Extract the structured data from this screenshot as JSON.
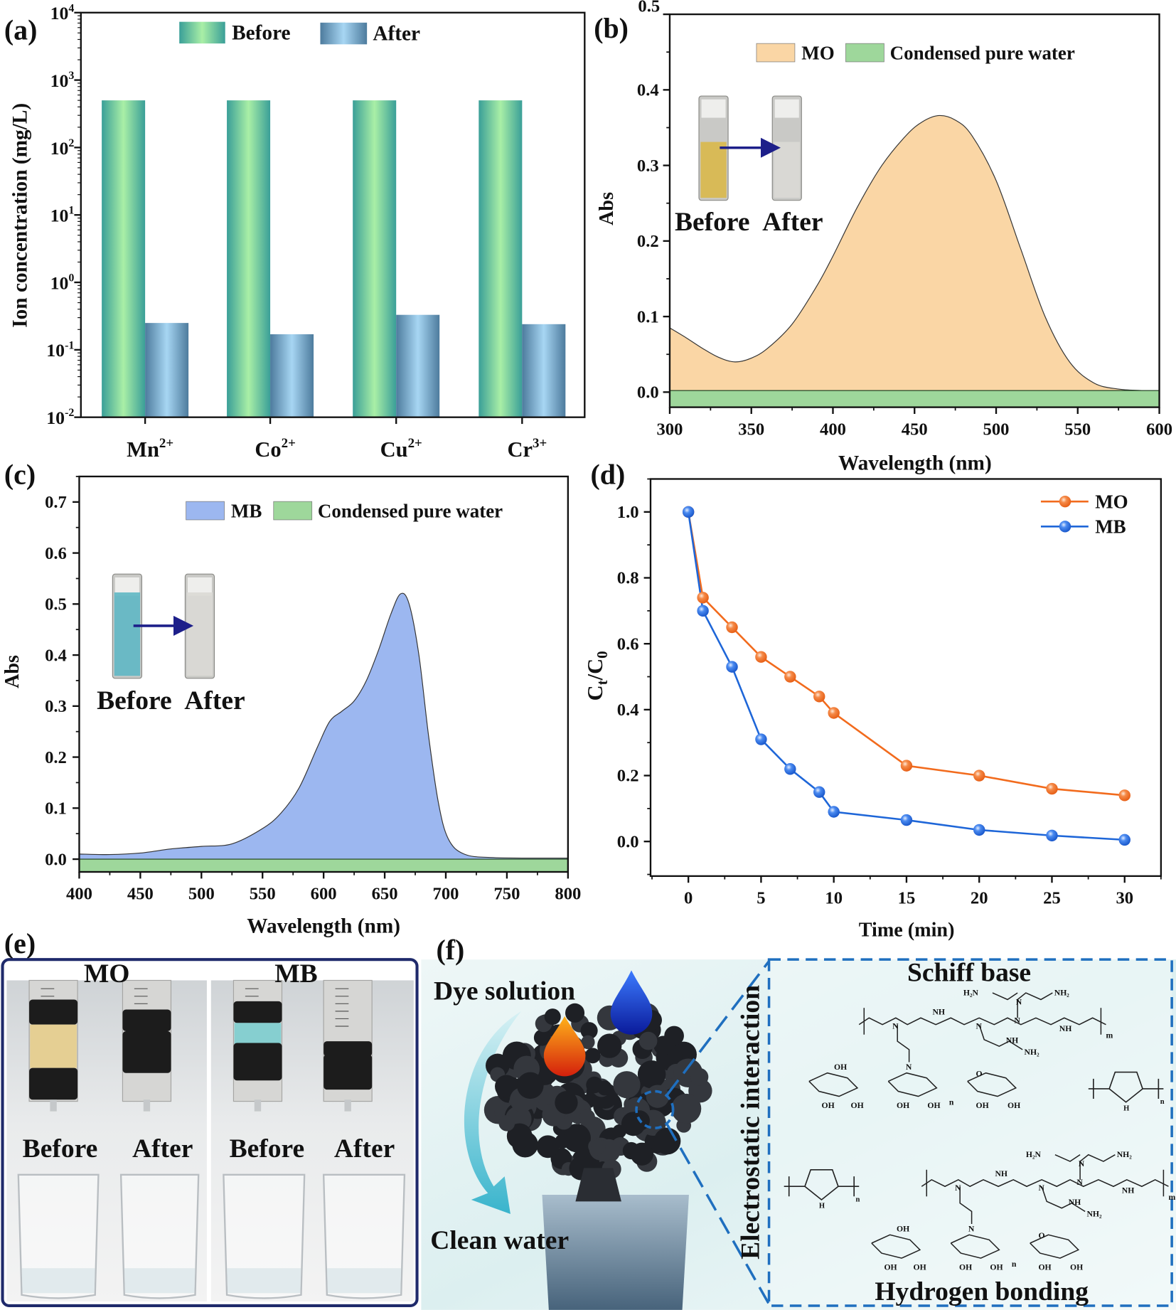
{
  "panel_labels": {
    "a": "(a)",
    "b": "(b)",
    "c": "(c)",
    "d": "(d)",
    "e": "(e)",
    "f": "(f)"
  },
  "chart_data": [
    {
      "id": "a",
      "type": "bar",
      "ylabel": "Ion concentration (mg/L)",
      "xlabel": "",
      "yscale": "log",
      "ylim": [
        0.01,
        10000
      ],
      "yticks": [
        {
          "base": "10",
          "exp": "-2"
        },
        {
          "base": "10",
          "exp": "-1"
        },
        {
          "base": "10",
          "exp": "0"
        },
        {
          "base": "10",
          "exp": "1"
        },
        {
          "base": "10",
          "exp": "2"
        },
        {
          "base": "10",
          "exp": "3"
        },
        {
          "base": "10",
          "exp": "4"
        }
      ],
      "categories": [
        {
          "ion": "Mn",
          "charge": "2+"
        },
        {
          "ion": "Co",
          "charge": "2+"
        },
        {
          "ion": "Cu",
          "charge": "2+"
        },
        {
          "ion": "Cr",
          "charge": "3+"
        }
      ],
      "series": [
        {
          "name": "Before",
          "values": [
            500,
            500,
            500,
            500
          ],
          "colors": [
            "#3a9f98",
            "#a9efa6"
          ]
        },
        {
          "name": "After",
          "values": [
            0.25,
            0.17,
            0.33,
            0.24
          ],
          "colors": [
            "#4d7b9d",
            "#a7d6f3"
          ]
        }
      ],
      "legend": "top-center",
      "grid": false
    },
    {
      "id": "b",
      "type": "area",
      "xlabel": "Wavelength (nm)",
      "ylabel": "Abs",
      "xlim": [
        300,
        600
      ],
      "ylim": [
        -0.02,
        0.5
      ],
      "xticks": [
        "300",
        "350",
        "400",
        "450",
        "500",
        "550",
        "600"
      ],
      "yticks": [
        "0.0",
        "0.1",
        "0.2",
        "0.3",
        "0.4",
        "0.5"
      ],
      "series": [
        {
          "name": "MO",
          "color": "#fad6a5",
          "x": [
            300,
            310,
            320,
            330,
            340,
            350,
            360,
            375,
            390,
            400,
            415,
            430,
            445,
            455,
            465,
            475,
            485,
            500,
            515,
            530,
            545,
            560,
            575,
            590,
            600
          ],
          "y": [
            0.085,
            0.072,
            0.058,
            0.046,
            0.04,
            0.045,
            0.058,
            0.09,
            0.14,
            0.18,
            0.245,
            0.3,
            0.34,
            0.358,
            0.366,
            0.36,
            0.34,
            0.28,
            0.19,
            0.1,
            0.04,
            0.012,
            0.004,
            0.002,
            0.0
          ]
        },
        {
          "name": "Condensed pure water",
          "color": "#9ed79b",
          "x": [
            300,
            600
          ],
          "y": [
            0.002,
            0.002
          ]
        }
      ],
      "legend": "top-right",
      "inset": {
        "before": "Before",
        "after": "After",
        "before_color": "#d9b84a"
      }
    },
    {
      "id": "c",
      "type": "area",
      "xlabel": "Wavelength (nm)",
      "ylabel": "Abs",
      "xlim": [
        400,
        800
      ],
      "ylim": [
        -0.025,
        0.75
      ],
      "xticks": [
        "400",
        "450",
        "500",
        "550",
        "600",
        "650",
        "700",
        "750",
        "800"
      ],
      "yticks": [
        "0.0",
        "0.1",
        "0.2",
        "0.3",
        "0.4",
        "0.5",
        "0.6",
        "0.7"
      ],
      "series": [
        {
          "name": "MB",
          "color": "#9cb7f0",
          "x": [
            400,
            425,
            450,
            475,
            500,
            525,
            550,
            565,
            580,
            595,
            605,
            615,
            625,
            635,
            645,
            655,
            663,
            670,
            678,
            686,
            694,
            702,
            715,
            740,
            800
          ],
          "y": [
            0.01,
            0.009,
            0.012,
            0.02,
            0.025,
            0.03,
            0.06,
            0.09,
            0.14,
            0.22,
            0.27,
            0.29,
            0.31,
            0.35,
            0.41,
            0.48,
            0.52,
            0.5,
            0.4,
            0.24,
            0.11,
            0.04,
            0.01,
            0.003,
            0.002
          ]
        },
        {
          "name": "Condensed pure water",
          "color": "#9ed79b",
          "x": [
            400,
            800
          ],
          "y": [
            0.0,
            0.0
          ]
        }
      ],
      "legend": "top-right",
      "inset": {
        "before": "Before",
        "after": "After",
        "before_color": "#5fb7c4"
      }
    },
    {
      "id": "d",
      "type": "line",
      "xlabel": "Time (min)",
      "ylabel_main": "C",
      "ylabel_sub1": "t",
      "ylabel_mid": "/C",
      "ylabel_sub2": "0",
      "xlim": [
        -2.6,
        32.5
      ],
      "ylim": [
        -0.105,
        1.1
      ],
      "xticks": [
        "0",
        "5",
        "10",
        "15",
        "20",
        "25",
        "30"
      ],
      "yticks": [
        "0.0",
        "0.2",
        "0.4",
        "0.6",
        "0.8",
        "1.0"
      ],
      "series": [
        {
          "name": "MO",
          "color": "#f26b1d",
          "x": [
            0,
            1,
            3,
            5,
            7,
            9,
            10,
            15,
            20,
            25,
            30
          ],
          "y": [
            1.0,
            0.74,
            0.65,
            0.56,
            0.5,
            0.44,
            0.39,
            0.23,
            0.2,
            0.16,
            0.14
          ]
        },
        {
          "name": "MB",
          "color": "#1e66d8",
          "x": [
            0,
            1,
            3,
            5,
            7,
            9,
            10,
            15,
            20,
            25,
            30
          ],
          "y": [
            1.0,
            0.7,
            0.53,
            0.31,
            0.22,
            0.15,
            0.09,
            0.065,
            0.035,
            0.018,
            0.005
          ]
        }
      ],
      "legend": "top-right"
    }
  ],
  "panel_e": {
    "mo_label": "MO",
    "mb_label": "MB",
    "captions": [
      "Before",
      "After",
      "Before",
      "After"
    ],
    "frame_color": "#1f2a6b"
  },
  "panel_f": {
    "dye_solution": "Dye solution",
    "clean_water": "Clean water",
    "electrostatic": "Electrostatic interaction",
    "schiff_base": "Schiff base",
    "hydrogen_bonding": "Hydrogen bonding",
    "dash_color": "#1f6fbf",
    "chem": {
      "h2n": "H₂N",
      "nh2": "NH₂",
      "n": "N",
      "nh": "NH",
      "h": "H",
      "oh": "OH",
      "o": "O",
      "m": "m",
      "sub_n": "n"
    }
  }
}
